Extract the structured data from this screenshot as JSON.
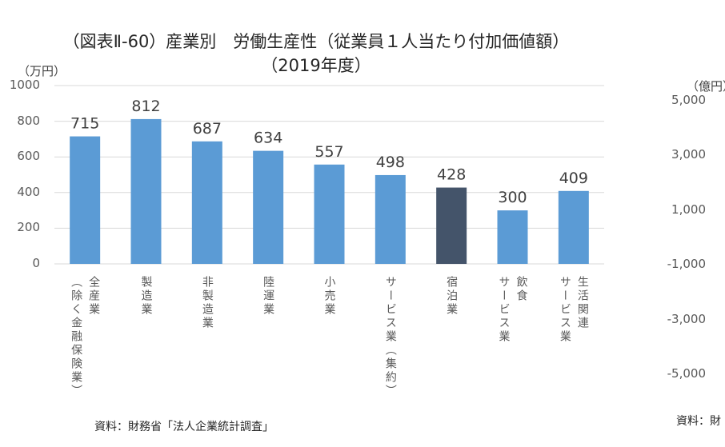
{
  "chart_data": {
    "type": "bar",
    "title": "（図表Ⅱ-60）産業別　労働生産性（従業員１人当たり付加価値額）",
    "subtitle": "（2019年度）",
    "ylabel": "（万円）",
    "ylim": [
      0,
      1000
    ],
    "yticks": [
      "0",
      "200",
      "400",
      "600",
      "800",
      "1000"
    ],
    "grid": true,
    "categories": [
      "全産業\n（除く金融保険業）",
      "製造業",
      "非製造業",
      "陸運業",
      "小売業",
      "サービス業（集約）",
      "宿泊業",
      "飲食\nサービス業",
      "生活関連\nサービス業"
    ],
    "values": [
      715,
      812,
      687,
      634,
      557,
      498,
      428,
      300,
      409
    ],
    "data_labels": [
      "715",
      "812",
      "687",
      "634",
      "557",
      "498",
      "428",
      "300",
      "409"
    ],
    "highlight_index": 6,
    "colors": {
      "bar": "#5b9bd5",
      "highlight": "#44546a",
      "grid": "#d9d9d9"
    }
  },
  "source": "資料：財務省「法人企業統計調査」",
  "right_chart_fragment": {
    "ylabel": "（億円）",
    "yticks": [
      "5,000",
      "3,000",
      "1,000",
      "-1,000",
      "-3,000",
      "-5,000"
    ],
    "source": "資料：財"
  }
}
